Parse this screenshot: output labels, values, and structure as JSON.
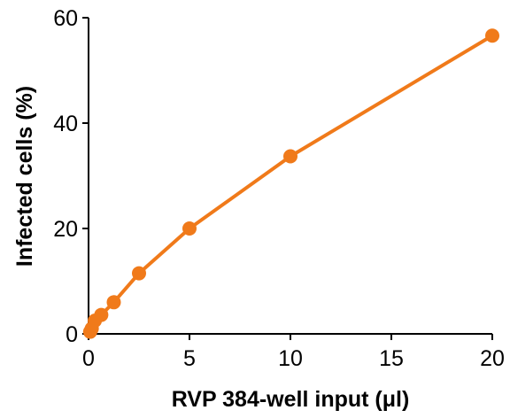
{
  "chart_data": {
    "type": "line",
    "xlabel": "RVP 384-well input (μl)",
    "ylabel": "Infected cells (%)",
    "xlim": [
      0,
      20
    ],
    "ylim": [
      0,
      60
    ],
    "x_ticks": [
      0,
      5,
      10,
      15,
      20
    ],
    "y_ticks": [
      0,
      20,
      40,
      60
    ],
    "grid": false,
    "series_color": "#f07a1a",
    "series": [
      {
        "x": [
          0.08,
          0.16,
          0.31,
          0.63,
          1.25,
          2.5,
          5,
          10,
          20
        ],
        "y": [
          0.4,
          1.0,
          2.5,
          3.6,
          6.0,
          11.5,
          20.0,
          33.7,
          56.6
        ]
      }
    ]
  }
}
